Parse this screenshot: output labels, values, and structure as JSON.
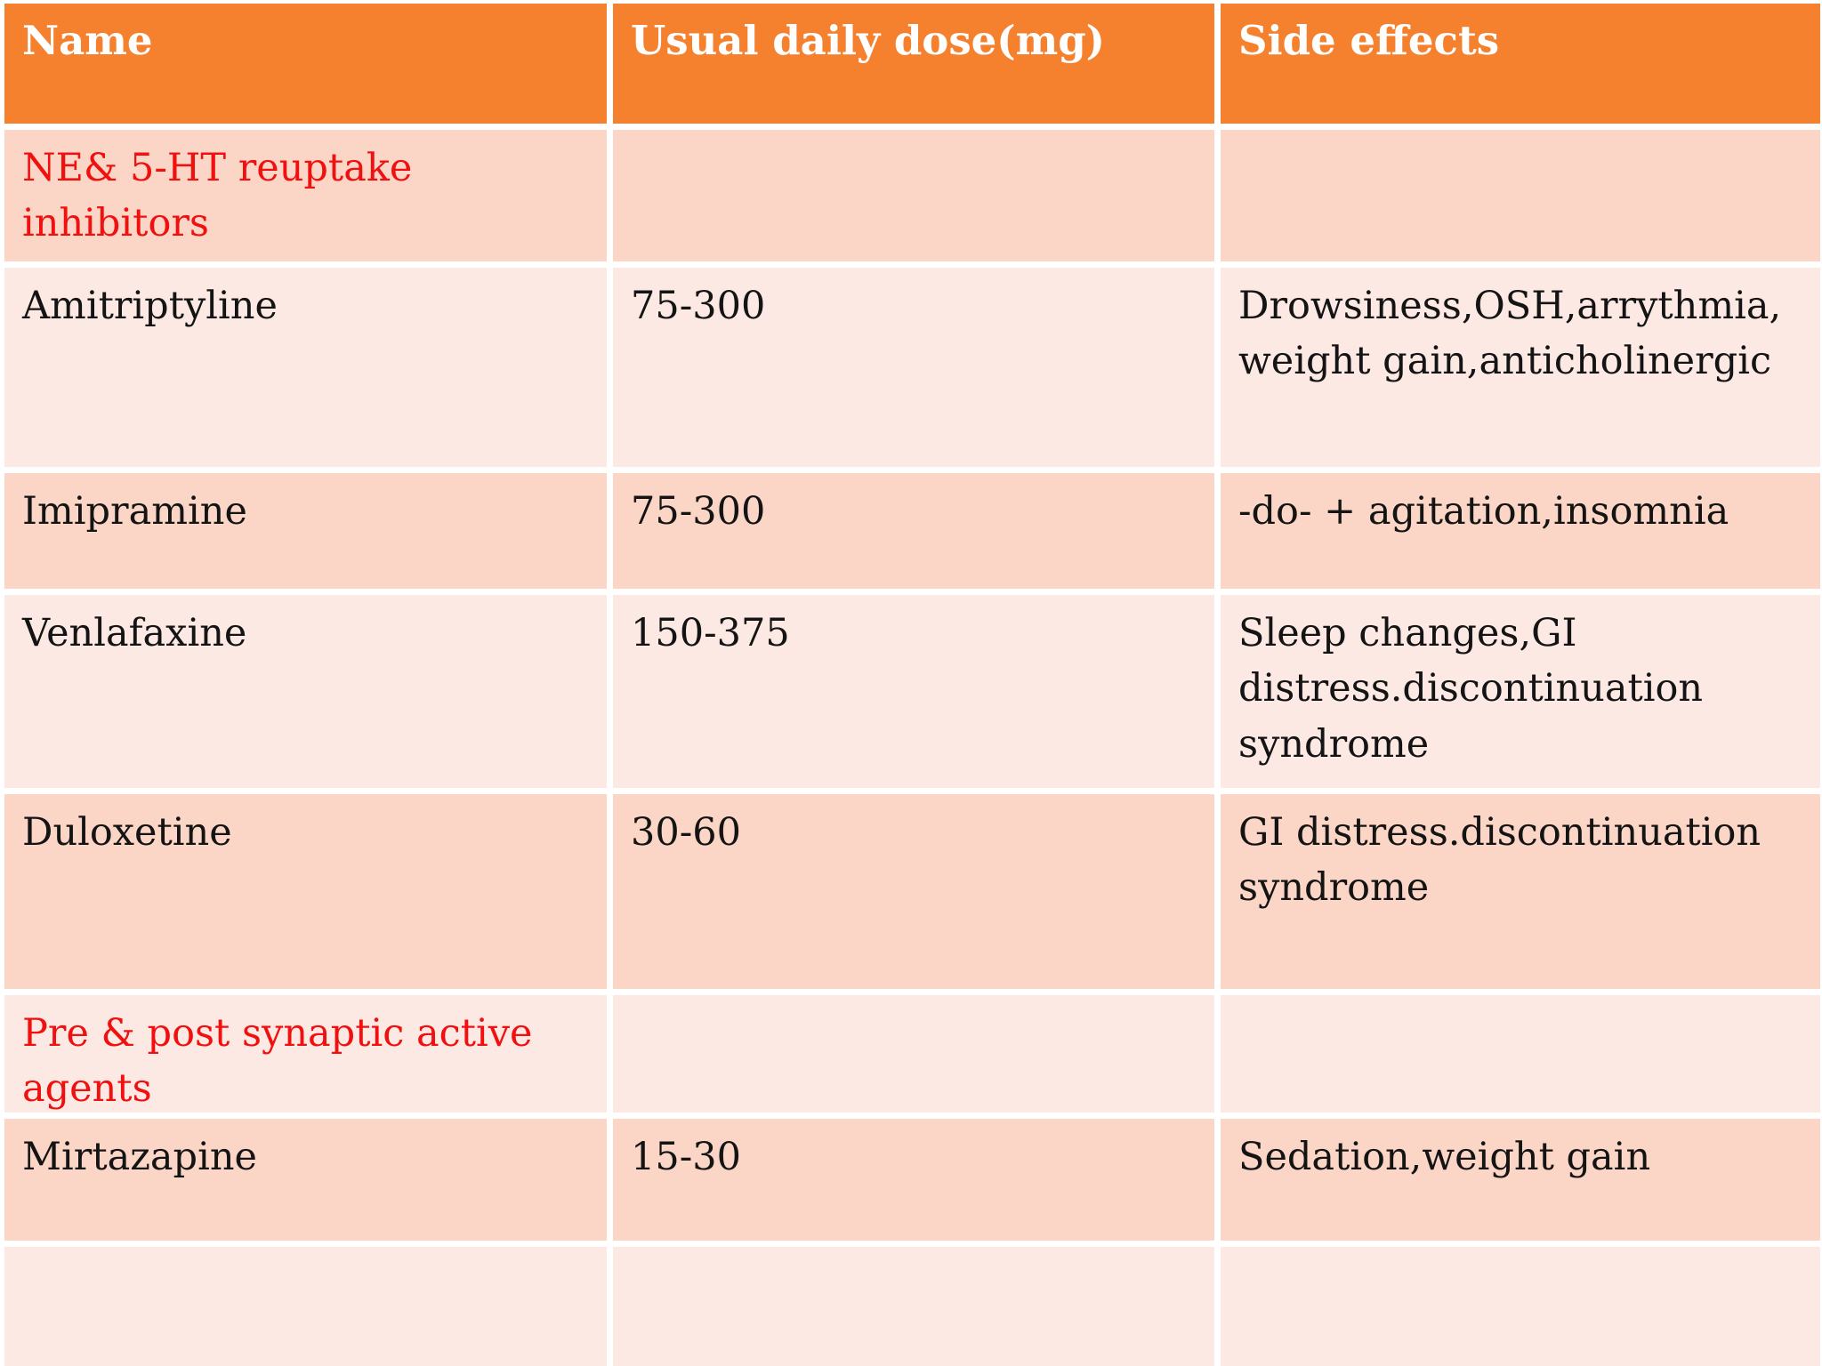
{
  "colors": {
    "header_bg": "#f5812f",
    "header_text": "#ffffff",
    "band_dark": "#fbd5c5",
    "band_light": "#fde9e4",
    "section_text": "#f01010",
    "body_text": "#141414"
  },
  "table": {
    "columns": [
      {
        "label": "Name"
      },
      {
        "label": "Usual daily dose(mg)"
      },
      {
        "label": "Side effects"
      }
    ],
    "rows": [
      {
        "type": "section",
        "name": "NE& 5-HT reuptake inhibitors",
        "dose": "",
        "side_effects": ""
      },
      {
        "type": "drug",
        "name": "Amitriptyline",
        "dose": "75-300",
        "side_effects": "Drowsiness,OSH,arrythmia,weight gain,anticholinergic"
      },
      {
        "type": "drug",
        "name": "Imipramine",
        "dose": "75-300",
        "side_effects": "-do- + agitation,insomnia"
      },
      {
        "type": "drug",
        "name": "Venlafaxine",
        "dose": "150-375",
        "side_effects": "Sleep changes,GI distress.discontinuation syndrome"
      },
      {
        "type": "drug",
        "name": "Duloxetine",
        "dose": "30-60",
        "side_effects": "GI distress.discontinuation syndrome"
      },
      {
        "type": "section",
        "name": "Pre & post synaptic active agents",
        "dose": "",
        "side_effects": ""
      },
      {
        "type": "drug",
        "name": "Mirtazapine",
        "dose": "15-30",
        "side_effects": "Sedation,weight gain"
      },
      {
        "type": "empty",
        "name": "",
        "dose": "",
        "side_effects": ""
      }
    ]
  }
}
